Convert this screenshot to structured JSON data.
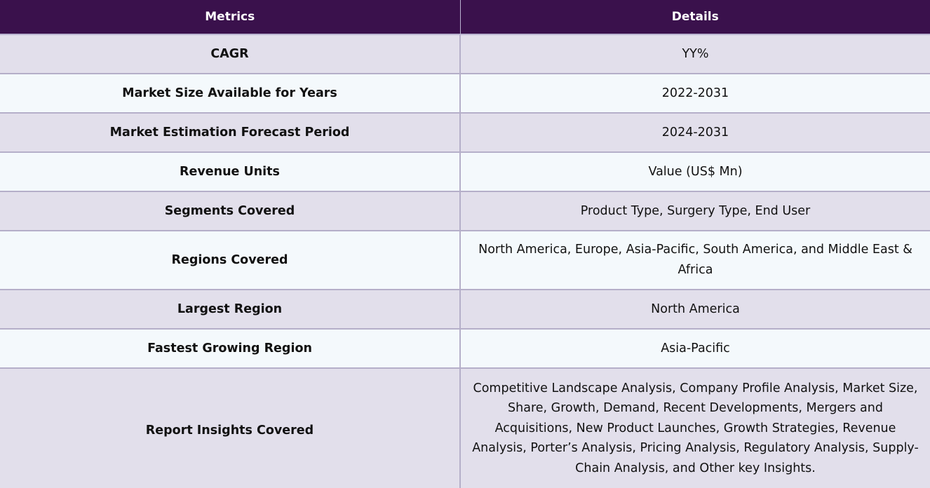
{
  "table": {
    "headers": {
      "metrics": "Metrics",
      "details": "Details"
    },
    "rows": [
      {
        "metric": "CAGR",
        "detail": "YY%"
      },
      {
        "metric": "Market Size Available for Years",
        "detail": "2022-2031"
      },
      {
        "metric": "Market Estimation Forecast Period",
        "detail": "2024-2031"
      },
      {
        "metric": "Revenue Units",
        "detail": "Value (US$ Mn)"
      },
      {
        "metric": "Segments Covered",
        "detail": "Product Type, Surgery Type, End User"
      },
      {
        "metric": "Regions Covered",
        "detail": "North America, Europe, Asia-Pacific, South America, and Middle East & Africa"
      },
      {
        "metric": "Largest Region",
        "detail": "North America"
      },
      {
        "metric": "Fastest Growing Region",
        "detail": "Asia-Pacific"
      },
      {
        "metric": "Report Insights Covered",
        "detail": "Competitive Landscape Analysis, Company Profile Analysis, Market Size, Share, Growth, Demand, Recent Developments, Mergers and Acquisitions, New Product Launches, Growth Strategies, Revenue Analysis, Porter’s Analysis, Pricing Analysis, Regulatory Analysis, Supply-Chain Analysis, and Other key Insights."
      }
    ]
  },
  "colors": {
    "header_bg": "#3a114c",
    "row_odd_bg": "#e2dfeb",
    "row_even_bg": "#f4f9fc",
    "border": "#b5afc9"
  }
}
